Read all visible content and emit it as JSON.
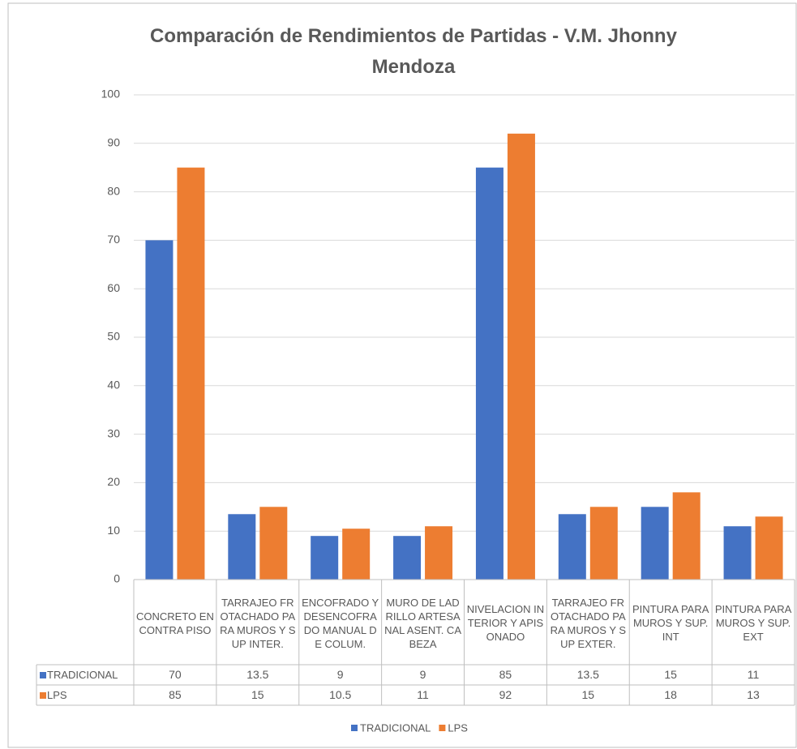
{
  "chart_data": {
    "type": "bar",
    "title": "Comparación de Rendimientos de Partidas - V.M. Jhonny Mendoza",
    "categories": [
      "CONCRETO EN CONTRA PISO",
      "TARRAJEO FROTACHADO PARA MUROS Y SUP INTER.",
      "ENCOFRADO Y DESENCOFRADO MANUAL DE COLUM.",
      "MURO DE LADRILLO ARTESANAL ASENT. CABEZA",
      "NIVELACION INTERIOR Y APISONADO",
      "TARRAJEO FROTACHADO PARA MUROS Y SUP EXTER.",
      "PINTURA PARA MUROS Y SUP. INT",
      "PINTURA PARA MUROS Y SUP. EXT"
    ],
    "series": [
      {
        "name": "TRADICIONAL",
        "color": "#4472c4",
        "values": [
          70,
          13.5,
          9,
          9,
          85,
          13.5,
          15,
          11
        ]
      },
      {
        "name": "LPS",
        "color": "#ed7d31",
        "values": [
          85,
          15,
          10.5,
          11,
          92,
          15,
          18,
          13
        ]
      }
    ],
    "ylim": [
      0,
      100
    ],
    "yticks": [
      0,
      10,
      20,
      30,
      40,
      50,
      60,
      70,
      80,
      90,
      100
    ],
    "grid": true
  }
}
